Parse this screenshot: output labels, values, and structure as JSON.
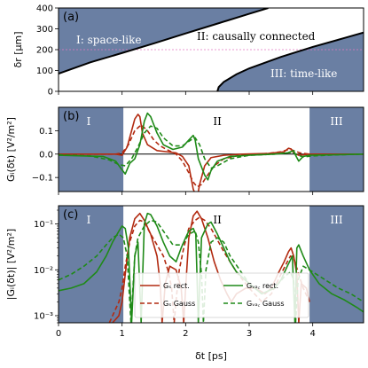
{
  "chart_data": [
    {
      "type": "area",
      "panel_label": "(a)",
      "ylabel": "δr  [μm]",
      "xlim": [
        0,
        4.8
      ],
      "ylim": [
        0,
        400
      ],
      "yticks": [
        "0",
        "100",
        "200",
        "300",
        "400"
      ],
      "shade_color": "#6a7fa3",
      "dashed_line_y": 200,
      "dashed_line_color": "#e377c2",
      "regions": [
        "I: space-like",
        "II: causally connected",
        "III: time-like"
      ],
      "upper_boundary": {
        "x": [
          0,
          0.5,
          1.0,
          1.5,
          2.0,
          2.5,
          3.0,
          3.3
        ],
        "y": [
          85,
          139,
          184,
          230,
          278,
          325,
          372,
          400
        ]
      },
      "lower_boundary": {
        "x": [
          2.5,
          2.52,
          2.6,
          2.8,
          3.0,
          3.5,
          4.0,
          4.5,
          4.8
        ],
        "y": [
          0,
          20,
          45,
          82,
          110,
          165,
          213,
          256,
          282
        ]
      }
    },
    {
      "type": "line",
      "panel_label": "(b)",
      "ylabel": "Gᵢ(δt)  [V²/m²]",
      "xlim": [
        0,
        4.8
      ],
      "ylim": [
        -0.16,
        0.2
      ],
      "yticks": [
        -0.1,
        0.0,
        0.1
      ],
      "ytick_labels": [
        "−0.1",
        "0.0",
        "0.1"
      ],
      "shaded_x_ranges": [
        [
          0,
          1.02
        ],
        [
          3.95,
          4.8
        ]
      ],
      "regions": [
        "I",
        "II",
        "III"
      ],
      "series": [
        {
          "color": "#b22a10",
          "dash": "solid",
          "x": [
            0,
            0.6,
            0.9,
            1.0,
            1.08,
            1.15,
            1.2,
            1.25,
            1.28,
            1.32,
            1.4,
            1.55,
            1.7,
            1.85,
            1.95,
            2.05,
            2.12,
            2.18,
            2.22,
            2.3,
            2.4,
            2.6,
            2.9,
            3.3,
            3.55,
            3.62,
            3.66,
            3.7,
            3.78,
            3.95,
            4.5,
            4.8
          ],
          "y": [
            0,
            0,
            0,
            -0.005,
            0.03,
            0.1,
            0.15,
            0.17,
            0.16,
            0.09,
            0.04,
            0.015,
            0.01,
            0.005,
            -0.01,
            -0.05,
            -0.15,
            -0.19,
            -0.13,
            -0.05,
            -0.015,
            -0.005,
            0,
            0.003,
            0.01,
            0.025,
            0.022,
            0.005,
            -0.005,
            0,
            0,
            0
          ]
        },
        {
          "color": "#b22a10",
          "dash": "dashed",
          "x": [
            0,
            0.6,
            0.9,
            1.0,
            1.1,
            1.2,
            1.3,
            1.4,
            1.5,
            1.6,
            1.7,
            1.85,
            1.95,
            2.05,
            2.12,
            2.18,
            2.25,
            2.32,
            2.45,
            2.6,
            2.8,
            3.0,
            3.3,
            3.5,
            3.6,
            3.65,
            3.7,
            3.8,
            3.95,
            4.5,
            4.8
          ],
          "y": [
            0,
            0,
            0,
            0.005,
            0.04,
            0.1,
            0.125,
            0.1,
            0.06,
            0.035,
            0.02,
            0.0,
            -0.03,
            -0.08,
            -0.12,
            -0.14,
            -0.13,
            -0.1,
            -0.05,
            -0.02,
            -0.008,
            -0.002,
            0.003,
            0.01,
            0.018,
            0.02,
            0.015,
            0.005,
            0.0,
            0,
            0
          ]
        },
        {
          "color": "#1f8a18",
          "dash": "solid",
          "x": [
            0,
            0.7,
            0.9,
            0.98,
            1.05,
            1.12,
            1.2,
            1.28,
            1.35,
            1.4,
            1.45,
            1.55,
            1.65,
            1.8,
            1.95,
            2.05,
            2.12,
            2.15,
            2.2,
            2.3,
            2.35,
            2.4,
            2.5,
            2.7,
            3.0,
            3.4,
            3.6,
            3.7,
            3.73,
            3.78,
            3.85,
            3.95,
            4.5,
            4.8
          ],
          "y": [
            -0.005,
            -0.01,
            -0.03,
            -0.06,
            -0.085,
            -0.04,
            -0.02,
            0.04,
            0.14,
            0.175,
            0.16,
            0.09,
            0.04,
            0.02,
            0.03,
            0.06,
            0.08,
            0.06,
            -0.02,
            -0.09,
            -0.11,
            -0.07,
            -0.03,
            -0.01,
            -0.005,
            0,
            0.005,
            0.015,
            -0.005,
            -0.03,
            -0.01,
            -0.005,
            -0.002,
            0
          ]
        },
        {
          "color": "#1f8a18",
          "dash": "dashed",
          "x": [
            0,
            0.5,
            0.8,
            0.95,
            1.05,
            1.15,
            1.25,
            1.35,
            1.45,
            1.55,
            1.65,
            1.8,
            1.95,
            2.08,
            2.15,
            2.22,
            2.3,
            2.4,
            2.5,
            2.7,
            3.0,
            3.4,
            3.6,
            3.68,
            3.75,
            3.85,
            4.0,
            4.4,
            4.8
          ],
          "y": [
            -0.003,
            -0.008,
            -0.025,
            -0.045,
            -0.05,
            -0.02,
            0.03,
            0.09,
            0.12,
            0.11,
            0.07,
            0.035,
            0.035,
            0.06,
            0.07,
            0.04,
            -0.02,
            -0.06,
            -0.05,
            -0.02,
            -0.005,
            0,
            0.005,
            0.008,
            -0.003,
            -0.012,
            -0.008,
            -0.003,
            0
          ]
        }
      ]
    },
    {
      "type": "line",
      "panel_label": "(c)",
      "ylabel": "|Gᵢ(δt)|  [V²/m²]",
      "xlabel": "δt   [ps]",
      "yscale": "log",
      "xlim": [
        0,
        4.8
      ],
      "ylim": [
        0.0007,
        0.25
      ],
      "xticks": [
        0,
        1,
        2,
        3,
        4
      ],
      "xtick_labels": [
        "0",
        "1",
        "2",
        "3",
        "4"
      ],
      "yticks": [
        0.001,
        0.01,
        0.1
      ],
      "ytick_labels": [
        "10⁻³",
        "10⁻²",
        "10⁻¹"
      ],
      "shaded_x_ranges": [
        [
          0,
          1.02
        ],
        [
          3.95,
          4.8
        ]
      ],
      "regions": [
        "I",
        "II",
        "III"
      ],
      "legend": {
        "placement": "lower-center",
        "entries": [
          {
            "label": "Gₛ rect.",
            "color": "#b22a10",
            "dash": "solid"
          },
          {
            "label": "Gₛ Gauss",
            "color": "#b22a10",
            "dash": "dashed"
          },
          {
            "label": "Gᵥₐ꜀ rect.",
            "color": "#1f8a18",
            "dash": "solid"
          },
          {
            "label": "Gᵥₐ꜀ Gauss",
            "color": "#1f8a18",
            "dash": "dashed"
          }
        ]
      },
      "series": [
        {
          "color": "#b22a10",
          "dash": "solid",
          "x": [
            0.85,
            0.95,
            1.0,
            1.05,
            1.12,
            1.2,
            1.28,
            1.35,
            1.45,
            1.55,
            1.6,
            1.63,
            1.68,
            1.75,
            1.85,
            1.93,
            1.97,
            2.0,
            2.05,
            2.12,
            2.18,
            2.25,
            2.35,
            2.45,
            2.55,
            2.65,
            2.72,
            2.8,
            2.95,
            3.1,
            3.25,
            3.35,
            3.45,
            3.55,
            3.62,
            3.66,
            3.7,
            3.75,
            3.78,
            3.82,
            3.9,
            3.95
          ],
          "y": [
            0.0007,
            0.001,
            0.002,
            0.008,
            0.05,
            0.13,
            0.17,
            0.12,
            0.06,
            0.02,
            0.005,
            0.0007,
            0.005,
            0.012,
            0.01,
            0.004,
            0.0007,
            0.004,
            0.05,
            0.15,
            0.19,
            0.13,
            0.05,
            0.015,
            0.006,
            0.003,
            0.002,
            0.003,
            0.004,
            0.004,
            0.003,
            0.004,
            0.008,
            0.015,
            0.025,
            0.03,
            0.02,
            0.008,
            0.0007,
            0.005,
            0.004,
            0.002
          ]
        },
        {
          "color": "#b22a10",
          "dash": "dashed",
          "x": [
            0.8,
            0.95,
            1.0,
            1.05,
            1.12,
            1.2,
            1.28,
            1.35,
            1.45,
            1.55,
            1.65,
            1.72,
            1.78,
            1.82,
            1.86,
            1.9,
            1.97,
            2.05,
            2.15,
            2.22,
            2.3,
            2.4,
            2.5,
            2.6,
            2.7,
            2.8,
            3.0,
            3.2,
            3.35,
            3.5,
            3.6,
            3.65,
            3.7,
            3.78,
            3.85,
            3.95
          ],
          "y": [
            0.0007,
            0.002,
            0.004,
            0.012,
            0.04,
            0.09,
            0.12,
            0.11,
            0.06,
            0.035,
            0.02,
            0.01,
            0.004,
            0.0007,
            0.003,
            0.01,
            0.03,
            0.08,
            0.12,
            0.14,
            0.12,
            0.08,
            0.045,
            0.025,
            0.015,
            0.009,
            0.004,
            0.002,
            0.003,
            0.008,
            0.015,
            0.02,
            0.018,
            0.008,
            0.004,
            0.002
          ]
        },
        {
          "color": "#1f8a18",
          "dash": "solid",
          "x": [
            0,
            0.2,
            0.4,
            0.6,
            0.75,
            0.85,
            0.95,
            1.0,
            1.05,
            1.1,
            1.15,
            1.2,
            1.25,
            1.3,
            1.35,
            1.4,
            1.45,
            1.55,
            1.65,
            1.75,
            1.85,
            1.93,
            2.0,
            2.05,
            2.12,
            2.16,
            2.2,
            2.25,
            2.35,
            2.4,
            2.5,
            2.6,
            2.7,
            2.8,
            3.0,
            3.2,
            3.4,
            3.5,
            3.6,
            3.68,
            3.72,
            3.75,
            3.78,
            3.85,
            3.95,
            4.1,
            4.3,
            4.5,
            4.7,
            4.8
          ],
          "y": [
            0.0035,
            0.004,
            0.005,
            0.009,
            0.02,
            0.04,
            0.07,
            0.09,
            0.08,
            0.03,
            0.0007,
            0.02,
            0.04,
            0.0007,
            0.1,
            0.17,
            0.16,
            0.09,
            0.04,
            0.02,
            0.015,
            0.03,
            0.05,
            0.07,
            0.08,
            0.06,
            0.0007,
            0.05,
            0.1,
            0.11,
            0.06,
            0.03,
            0.015,
            0.009,
            0.005,
            0.003,
            0.004,
            0.006,
            0.012,
            0.02,
            0.0007,
            0.03,
            0.035,
            0.02,
            0.01,
            0.005,
            0.003,
            0.0022,
            0.0015,
            0.0012
          ]
        },
        {
          "color": "#1f8a18",
          "dash": "dashed",
          "x": [
            0,
            0.2,
            0.4,
            0.6,
            0.75,
            0.85,
            0.95,
            1.02,
            1.08,
            1.14,
            1.2,
            1.25,
            1.35,
            1.45,
            1.55,
            1.65,
            1.8,
            1.95,
            2.05,
            2.15,
            2.2,
            2.25,
            2.28,
            2.32,
            2.4,
            2.5,
            2.6,
            2.7,
            2.85,
            3.0,
            3.2,
            3.4,
            3.55,
            3.65,
            3.7,
            3.73,
            3.77,
            3.85,
            4.0,
            4.2,
            4.4,
            4.6,
            4.8
          ],
          "y": [
            0.006,
            0.008,
            0.012,
            0.02,
            0.035,
            0.05,
            0.06,
            0.05,
            0.02,
            0.0007,
            0.02,
            0.05,
            0.09,
            0.12,
            0.11,
            0.07,
            0.035,
            0.035,
            0.06,
            0.07,
            0.04,
            0.008,
            0.0007,
            0.01,
            0.04,
            0.05,
            0.04,
            0.02,
            0.01,
            0.005,
            0.003,
            0.004,
            0.007,
            0.009,
            0.006,
            0.0007,
            0.006,
            0.012,
            0.009,
            0.006,
            0.004,
            0.003,
            0.002
          ]
        }
      ]
    }
  ]
}
